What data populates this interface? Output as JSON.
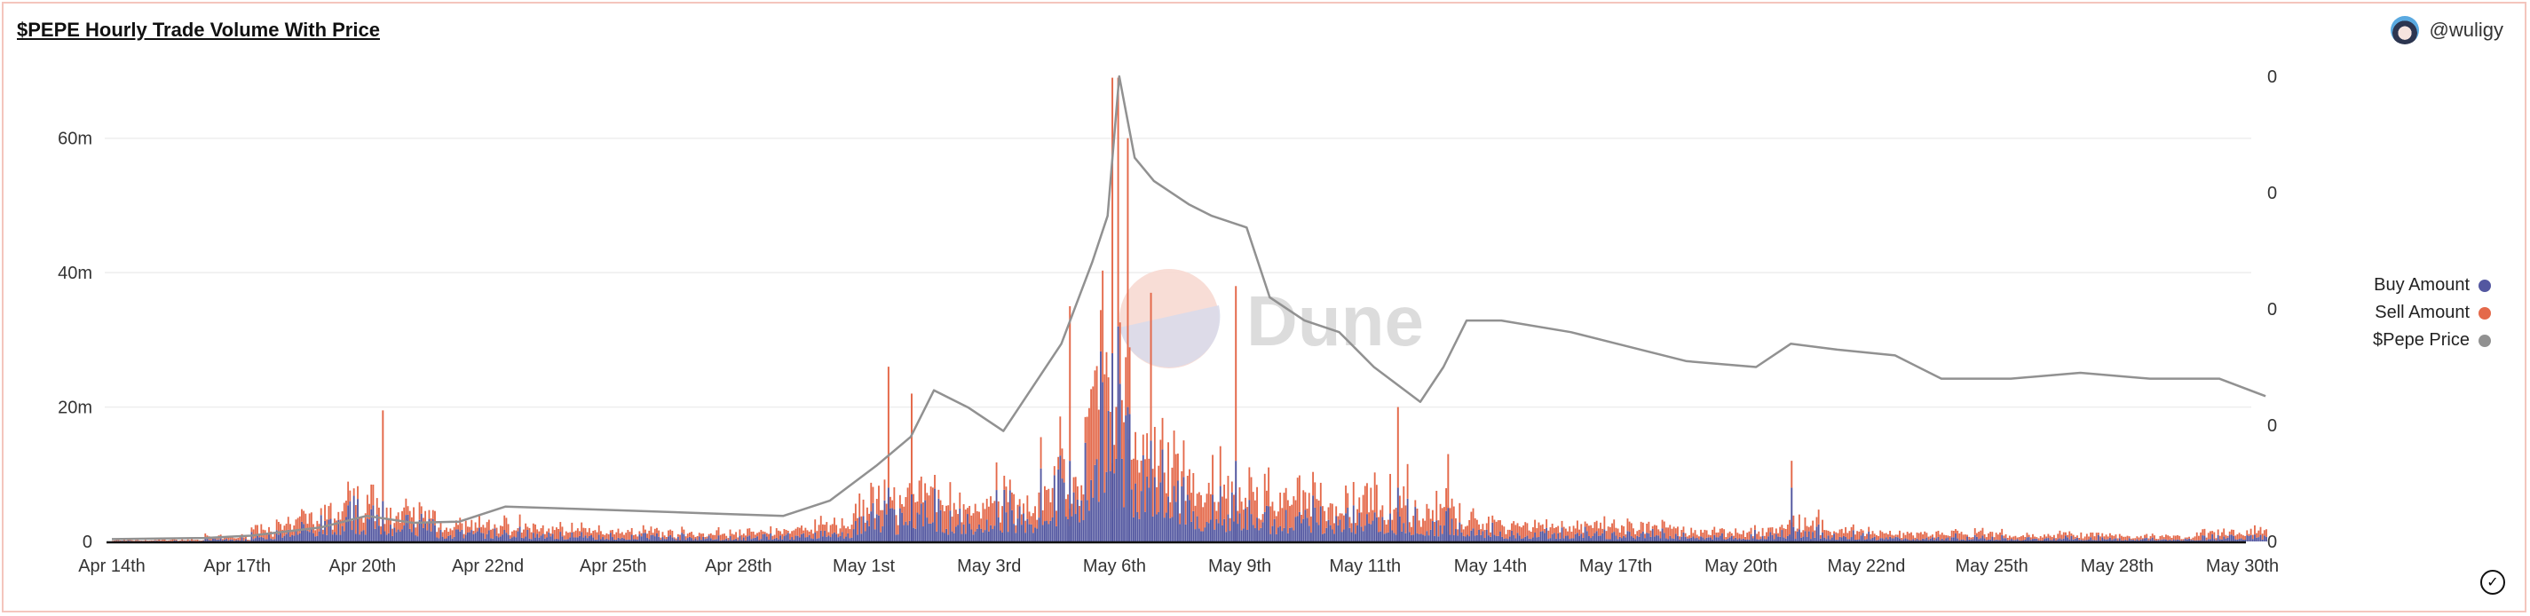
{
  "header": {
    "title": "$PEPE Hourly Trade Volume With Price",
    "author": "@wuligy"
  },
  "watermark": "Dune",
  "legend": [
    {
      "label": "Buy Amount",
      "color": "#5357a0"
    },
    {
      "label": "Sell Amount",
      "color": "#e4694a"
    },
    {
      "label": "$Pepe Price",
      "color": "#919191"
    }
  ],
  "chart_data": {
    "type": "bar",
    "stacked": true,
    "title": "$PEPE Hourly Trade Volume With Price",
    "x_tick_labels": [
      "Apr 14th",
      "Apr 17th",
      "Apr 20th",
      "Apr 22nd",
      "Apr 25th",
      "Apr 28th",
      "May 1st",
      "May 3rd",
      "May 6th",
      "May 9th",
      "May 11th",
      "May 14th",
      "May 17th",
      "May 20th",
      "May 22nd",
      "May 25th",
      "May 28th",
      "May 30th"
    ],
    "x_range": [
      "2023-04-14",
      "2023-05-30"
    ],
    "y_left": {
      "ticks": [
        0,
        20000000,
        40000000,
        60000000
      ],
      "tick_labels": [
        "0",
        "20m",
        "40m",
        "60m"
      ],
      "range": [
        0,
        70000000
      ]
    },
    "y_right": {
      "ticks": [
        0,
        1e-06,
        2e-06,
        3e-06,
        4e-06
      ],
      "tick_labels": [
        "0",
        "0",
        "0",
        "0",
        "0"
      ]
    },
    "grid": true,
    "legend_position": "right",
    "daily_typical_hourly_volume": {
      "dates": [
        "04-14",
        "04-15",
        "04-16",
        "04-17",
        "04-18",
        "04-19",
        "04-20",
        "04-21",
        "04-22",
        "04-23",
        "04-24",
        "04-25",
        "04-26",
        "04-27",
        "04-28",
        "04-29",
        "04-30",
        "05-01",
        "05-02",
        "05-03",
        "05-04",
        "05-05",
        "05-06",
        "05-07",
        "05-08",
        "05-09",
        "05-10",
        "05-11",
        "05-12",
        "05-13",
        "05-14",
        "05-15",
        "05-16",
        "05-17",
        "05-18",
        "05-19",
        "05-20",
        "05-21",
        "05-22",
        "05-23",
        "05-24",
        "05-25",
        "05-26",
        "05-27",
        "05-28",
        "05-29",
        "05-30"
      ],
      "series": [
        {
          "name": "Buy Amount",
          "values": [
            0.1,
            0.1,
            0.4,
            1.2,
            3,
            4,
            3,
            1.5,
            1.5,
            1.2,
            1,
            1,
            0.8,
            0.6,
            1,
            1.5,
            4,
            5,
            4,
            5,
            8,
            18,
            9,
            6,
            5,
            4,
            4,
            4,
            3,
            2,
            1.5,
            1.5,
            1.2,
            1.2,
            1,
            1,
            1.5,
            1,
            0.7,
            0.7,
            0.7,
            0.5,
            0.7,
            0.5,
            0.5,
            0.7,
            1
          ]
        },
        {
          "name": "Sell Amount",
          "values": [
            0.1,
            0.2,
            0.4,
            1.3,
            2,
            3,
            2,
            1.5,
            1.5,
            1.3,
            1,
            1,
            0.7,
            0.9,
            1,
            1.5,
            3,
            4,
            3,
            3,
            4,
            12,
            6,
            4,
            4,
            4,
            3,
            4,
            3,
            2,
            1.5,
            1.5,
            1.3,
            1.3,
            1,
            1,
            1.5,
            1,
            0.8,
            0.8,
            0.8,
            0.5,
            0.8,
            0.5,
            0.5,
            0.8,
            1
          ]
        }
      ]
    },
    "spikes": [
      {
        "date": "2023-04-19T20:00",
        "buy": 6,
        "sell": 13.5
      },
      {
        "date": "2023-04-30T18:00",
        "buy": 8,
        "sell": 18
      },
      {
        "date": "2023-05-01T06:00",
        "buy": 7,
        "sell": 15
      },
      {
        "date": "2023-05-04T16:00",
        "buy": 12,
        "sell": 23
      },
      {
        "date": "2023-05-05T14:00",
        "buy": 28,
        "sell": 41
      },
      {
        "date": "2023-05-05T17:00",
        "buy": 32,
        "sell": 37
      },
      {
        "date": "2023-05-05T22:00",
        "buy": 20,
        "sell": 40
      },
      {
        "date": "2023-05-06T10:00",
        "buy": 15,
        "sell": 22
      },
      {
        "date": "2023-05-08T06:00",
        "buy": 12,
        "sell": 26
      },
      {
        "date": "2023-05-11T18:00",
        "buy": 8,
        "sell": 12
      },
      {
        "date": "2023-05-12T20:00",
        "buy": 5,
        "sell": 8
      },
      {
        "date": "2023-05-20T06:00",
        "buy": 8,
        "sell": 4
      }
    ],
    "price_series": {
      "name": "$Pepe Price",
      "points": [
        [
          "2023-04-14T00:00",
          2e-08
        ],
        [
          "2023-04-16T00:00",
          3e-08
        ],
        [
          "2023-04-17T00:00",
          5e-08
        ],
        [
          "2023-04-18T12:00",
          1.2e-07
        ],
        [
          "2023-04-19T12:00",
          2.2e-07
        ],
        [
          "2023-04-20T12:00",
          1.6e-07
        ],
        [
          "2023-04-21T12:00",
          1.7e-07
        ],
        [
          "2023-04-22T12:00",
          3e-07
        ],
        [
          "2023-04-24T00:00",
          2.8e-07
        ],
        [
          "2023-04-25T12:00",
          2.6e-07
        ],
        [
          "2023-04-27T00:00",
          2.4e-07
        ],
        [
          "2023-04-28T12:00",
          2.2e-07
        ],
        [
          "2023-04-29T12:00",
          3.5e-07
        ],
        [
          "2023-04-30T12:00",
          6.5e-07
        ],
        [
          "2023-05-01T06:00",
          9e-07
        ],
        [
          "2023-05-01T18:00",
          1.3e-06
        ],
        [
          "2023-05-02T12:00",
          1.15e-06
        ],
        [
          "2023-05-03T06:00",
          9.5e-07
        ],
        [
          "2023-05-03T20:00",
          1.3e-06
        ],
        [
          "2023-05-04T12:00",
          1.7e-06
        ],
        [
          "2023-05-05T04:00",
          2.4e-06
        ],
        [
          "2023-05-05T12:00",
          2.8e-06
        ],
        [
          "2023-05-05T18:00",
          4e-06
        ],
        [
          "2023-05-06T02:00",
          3.3e-06
        ],
        [
          "2023-05-06T12:00",
          3.1e-06
        ],
        [
          "2023-05-07T06:00",
          2.9e-06
        ],
        [
          "2023-05-07T18:00",
          2.8e-06
        ],
        [
          "2023-05-08T12:00",
          2.7e-06
        ],
        [
          "2023-05-09T00:00",
          2.1e-06
        ],
        [
          "2023-05-09T18:00",
          1.9e-06
        ],
        [
          "2023-05-10T12:00",
          1.8e-06
        ],
        [
          "2023-05-11T06:00",
          1.5e-06
        ],
        [
          "2023-05-12T06:00",
          1.2e-06
        ],
        [
          "2023-05-12T18:00",
          1.5e-06
        ],
        [
          "2023-05-13T06:00",
          1.9e-06
        ],
        [
          "2023-05-14T00:00",
          1.9e-06
        ],
        [
          "2023-05-15T12:00",
          1.8e-06
        ],
        [
          "2023-05-16T12:00",
          1.7e-06
        ],
        [
          "2023-05-18T00:00",
          1.55e-06
        ],
        [
          "2023-05-19T12:00",
          1.5e-06
        ],
        [
          "2023-05-20T06:00",
          1.7e-06
        ],
        [
          "2023-05-21T06:00",
          1.65e-06
        ],
        [
          "2023-05-22T12:00",
          1.6e-06
        ],
        [
          "2023-05-23T12:00",
          1.4e-06
        ],
        [
          "2023-05-25T00:00",
          1.4e-06
        ],
        [
          "2023-05-26T12:00",
          1.45e-06
        ],
        [
          "2023-05-28T00:00",
          1.4e-06
        ],
        [
          "2023-05-29T12:00",
          1.4e-06
        ],
        [
          "2023-05-30T12:00",
          1.25e-06
        ]
      ]
    }
  }
}
